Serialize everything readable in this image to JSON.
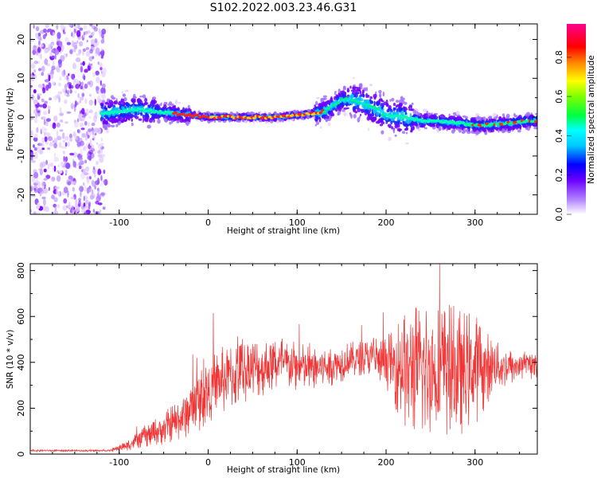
{
  "title": "S102.2022.003.23.46.G31",
  "chart_data": [
    {
      "type": "heatmap",
      "xlabel": "Height of straight line (km)",
      "ylabel": "Frequency (Hz)",
      "xlim": [
        -200,
        370
      ],
      "ylim": [
        -25,
        24
      ],
      "xticks": [
        -100,
        0,
        100,
        200,
        300
      ],
      "yticks": [
        -20,
        -10,
        0,
        10,
        20
      ],
      "colorbar": {
        "label": "Normalized spectral amplitude",
        "range": [
          0,
          0.97
        ],
        "ticks": [
          0.0,
          0.2,
          0.4,
          0.6,
          0.8
        ],
        "colormap": [
          "#f0e0ff",
          "#7a00ff",
          "#0000ff",
          "#00ffff",
          "#00ff00",
          "#ffff00",
          "#ff8000",
          "#ff0000",
          "#ff00a0"
        ]
      },
      "trace": {
        "x": [
          -120,
          -100,
          -80,
          -60,
          -40,
          -20,
          0,
          20,
          40,
          60,
          80,
          100,
          120,
          130,
          140,
          150,
          160,
          170,
          180,
          190,
          200,
          220,
          240,
          260,
          280,
          300,
          320,
          340,
          360,
          370
        ],
        "frequency_hz": [
          1,
          1.5,
          2,
          1.5,
          1,
          0.5,
          0,
          0,
          0,
          0,
          0,
          0.5,
          1,
          1.5,
          3,
          4.5,
          4.5,
          4,
          3,
          2,
          0.5,
          0,
          -1,
          -1,
          -1.5,
          -2,
          -2,
          -1.5,
          -1,
          -1
        ],
        "note": ""
      },
      "noise_region_x": [
        -200,
        -115
      ]
    },
    {
      "type": "line",
      "xlabel": "Height of straight line (km)",
      "ylabel": "SNR (10 * v/v)",
      "xlim": [
        -200,
        370
      ],
      "ylim": [
        0,
        830
      ],
      "xticks": [
        -100,
        0,
        100,
        200,
        300
      ],
      "yticks": [
        0,
        200,
        400,
        600,
        800
      ],
      "series": [
        {
          "name": "",
          "color": "#f03535",
          "x": [
            -200,
            -150,
            -110,
            -90,
            -70,
            -50,
            -30,
            -10,
            0,
            20,
            40,
            60,
            80,
            100,
            120,
            140,
            160,
            180,
            200,
            220,
            240,
            260,
            280,
            300,
            320,
            340,
            360,
            370
          ],
          "values": [
            15,
            15,
            15,
            40,
            80,
            110,
            160,
            230,
            280,
            330,
            360,
            380,
            390,
            380,
            370,
            390,
            410,
            420,
            400,
            370,
            370,
            360,
            360,
            370,
            380,
            380,
            390,
            380
          ],
          "spread": [
            4,
            4,
            4,
            25,
            50,
            70,
            100,
            130,
            150,
            150,
            140,
            130,
            120,
            110,
            100,
            90,
            80,
            80,
            110,
            260,
            300,
            300,
            290,
            250,
            120,
            80,
            60,
            60
          ]
        }
      ]
    }
  ]
}
